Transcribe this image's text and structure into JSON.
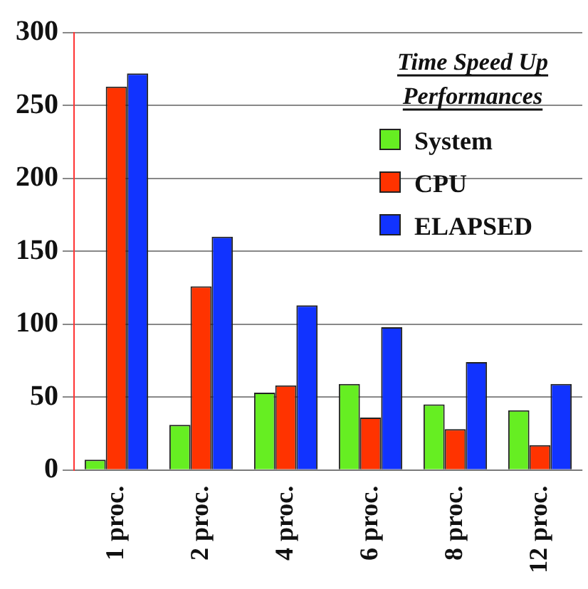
{
  "chart_data": {
    "type": "bar",
    "legend_title": "Time Speed Up Performances",
    "categories": [
      "1 proc.",
      "2 proc.",
      "4 proc.",
      "6 proc.",
      "8 proc.",
      "12 proc."
    ],
    "series": [
      {
        "name": "System",
        "color": "#66ee22",
        "values": [
          7,
          31,
          53,
          59,
          45,
          41
        ]
      },
      {
        "name": "CPU",
        "color": "#ff3300",
        "values": [
          263,
          126,
          58,
          36,
          28,
          17
        ]
      },
      {
        "name": "ELAPSED",
        "color": "#1133ff",
        "values": [
          272,
          160,
          113,
          98,
          74,
          59
        ]
      }
    ],
    "ylim": [
      0,
      300
    ],
    "yticks": [
      0,
      50,
      100,
      150,
      200,
      250,
      300
    ],
    "grid": "y",
    "legend": "top right"
  }
}
